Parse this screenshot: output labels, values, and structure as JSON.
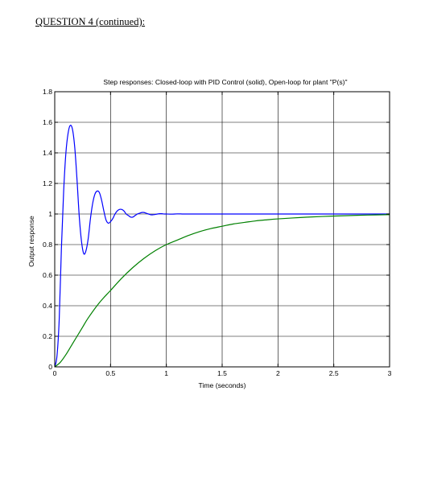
{
  "page": {
    "heading": "QUESTION 4 (continued):"
  },
  "chart_data": {
    "type": "line",
    "title": "Step responses:  Closed-loop with PID Control (solid), Open-loop for plant \"P(s)\"",
    "xlabel": "Time (seconds)",
    "ylabel": "Output response",
    "xlim": [
      0,
      3
    ],
    "ylim": [
      0,
      1.8
    ],
    "xticks": [
      0,
      0.5,
      1,
      1.5,
      2,
      2.5,
      3
    ],
    "xtick_labels": [
      "0",
      "0.5",
      "1",
      "1.5",
      "2",
      "2.5",
      "3"
    ],
    "yticks": [
      0,
      0.2,
      0.4,
      0.6,
      0.8,
      1,
      1.2,
      1.4,
      1.6,
      1.8
    ],
    "ytick_labels": [
      "0",
      "0.2",
      "0.4",
      "0.6",
      "0.8",
      "1",
      "1.2",
      "1.4",
      "1.6",
      "1.8"
    ],
    "grid": true,
    "series": [
      {
        "color": "#0000ff",
        "x": [
          0,
          0.02,
          0.04,
          0.06,
          0.08,
          0.1,
          0.12,
          0.14,
          0.16,
          0.18,
          0.2,
          0.22,
          0.24,
          0.26,
          0.28,
          0.3,
          0.32,
          0.34,
          0.36,
          0.38,
          0.4,
          0.42,
          0.44,
          0.46,
          0.48,
          0.5,
          0.52,
          0.54,
          0.56,
          0.58,
          0.6,
          0.62,
          0.64,
          0.66,
          0.68,
          0.7,
          0.72,
          0.74,
          0.76,
          0.78,
          0.8,
          0.82,
          0.84,
          0.86,
          0.88,
          0.9,
          0.92,
          0.94,
          0.96,
          0.98,
          1.0,
          1.05,
          1.1,
          1.15,
          1.2,
          1.25,
          1.3,
          1.35,
          1.4,
          1.45,
          1.5,
          1.6,
          1.7,
          1.8,
          2.0,
          2.5,
          3.0
        ],
        "y": [
          0,
          0.07,
          0.31,
          0.78,
          1.15,
          1.4,
          1.53,
          1.58,
          1.55,
          1.43,
          1.22,
          0.98,
          0.82,
          0.74,
          0.76,
          0.84,
          0.97,
          1.07,
          1.13,
          1.15,
          1.14,
          1.09,
          1.02,
          0.96,
          0.94,
          0.95,
          0.97,
          1.0,
          1.02,
          1.03,
          1.03,
          1.02,
          1.0,
          0.99,
          0.98,
          0.98,
          0.99,
          1.0,
          1.005,
          1.01,
          1.01,
          1.005,
          1.0,
          0.995,
          0.995,
          0.997,
          1.0,
          1.002,
          1.002,
          1.0,
          1.0,
          0.999,
          1.001,
          1.0,
          1.0,
          1.0,
          1.0,
          1.0,
          1.0,
          1.0,
          1.0,
          1.0,
          1.0,
          1.0,
          1.0,
          1.0,
          1.0
        ]
      },
      {
        "color": "#008000",
        "x": [
          0,
          0.05,
          0.1,
          0.15,
          0.2,
          0.25,
          0.3,
          0.4,
          0.5,
          0.6,
          0.7,
          0.8,
          0.9,
          1.0,
          1.1,
          1.2,
          1.3,
          1.4,
          1.5,
          1.6,
          1.7,
          1.8,
          1.9,
          2.0,
          2.2,
          2.4,
          2.6,
          2.8,
          3.0
        ],
        "y": [
          0,
          0.03,
          0.08,
          0.14,
          0.2,
          0.26,
          0.32,
          0.42,
          0.5,
          0.58,
          0.65,
          0.71,
          0.76,
          0.8,
          0.83,
          0.86,
          0.885,
          0.905,
          0.92,
          0.935,
          0.945,
          0.955,
          0.962,
          0.968,
          0.977,
          0.984,
          0.989,
          0.993,
          0.996
        ]
      }
    ]
  }
}
